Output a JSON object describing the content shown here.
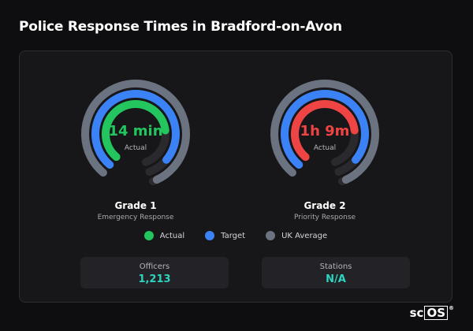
{
  "title": "Police Response Times in Bradford-on-Avon",
  "colors": {
    "actual_good": "#22c55e",
    "actual_bad": "#ef4444",
    "target": "#3b82f6",
    "uk_average": "#6b7280",
    "track": "#2a2a2e",
    "stat_value": "#2dd4bf"
  },
  "gauges": [
    {
      "value_text": "14 min",
      "value_color": "#22c55e",
      "sub_label": "Actual",
      "grade": "Grade 1",
      "grade_sub": "Emergency Response",
      "actual_fraction": 0.62,
      "target_fraction": 0.75,
      "uk_fraction": 0.82
    },
    {
      "value_text": "1h 9m",
      "value_color": "#ef4444",
      "sub_label": "Actual",
      "grade": "Grade 2",
      "grade_sub": "Priority Response",
      "actual_fraction": 0.62,
      "target_fraction": 0.75,
      "uk_fraction": 0.82
    }
  ],
  "legend": [
    {
      "label": "Actual",
      "color": "#22c55e"
    },
    {
      "label": "Target",
      "color": "#3b82f6"
    },
    {
      "label": "UK Average",
      "color": "#6b7280"
    }
  ],
  "stats": [
    {
      "label": "Officers",
      "value": "1,213"
    },
    {
      "label": "Stations",
      "value": "N/A"
    }
  ],
  "logo": {
    "prefix": "sc",
    "boxed": "OS",
    "mark": "®"
  }
}
